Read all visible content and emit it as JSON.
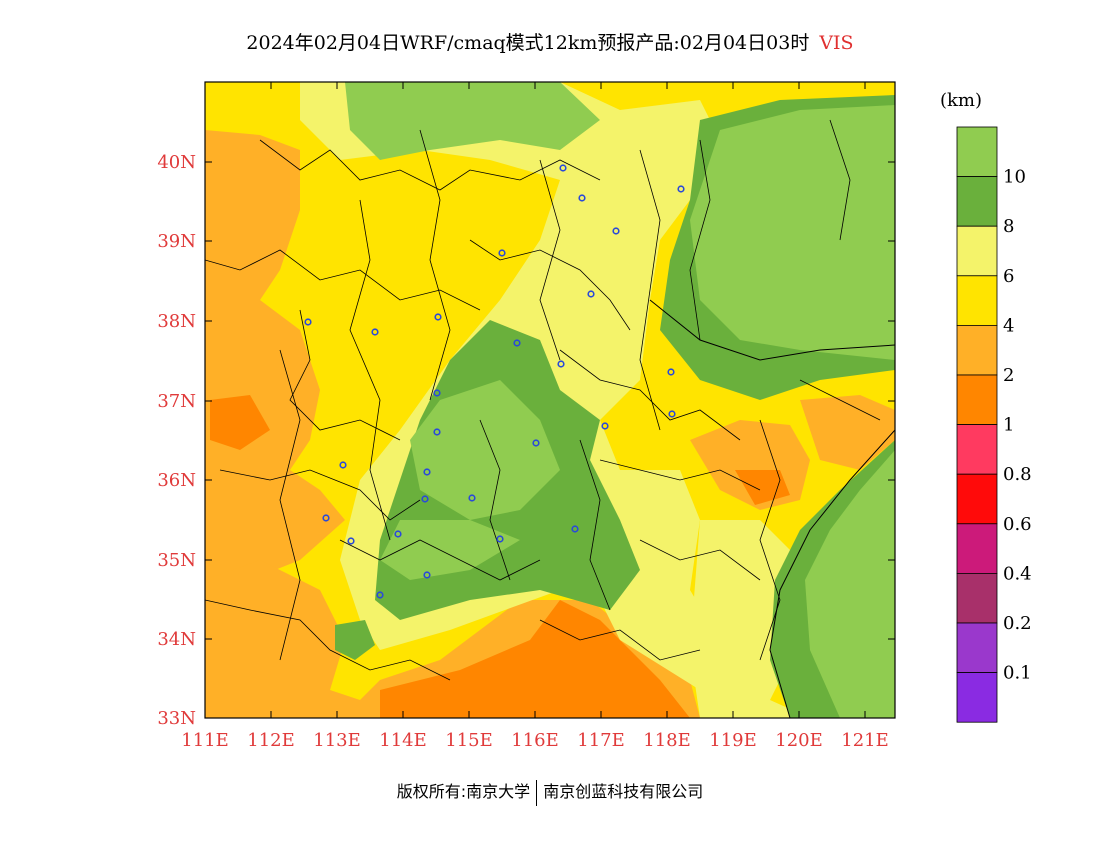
{
  "title": "2024年02月04日WRF/cmaq模式12km预报产品:02月04日03时",
  "variable": "VIS",
  "unit": "(km)",
  "footer": {
    "left": "版权所有:南京大学",
    "right": "南京创蓝科技有限公司"
  },
  "colors": {
    "tick": "#e03a3a",
    "city": "#2a4ad8"
  },
  "map": {
    "lon_ticks": [
      "111E",
      "112E",
      "113E",
      "114E",
      "115E",
      "116E",
      "117E",
      "118E",
      "119E",
      "120E",
      "121E"
    ],
    "lat_ticks": [
      "40N",
      "39N",
      "38N",
      "37N",
      "36N",
      "35N",
      "34N",
      "33N"
    ]
  },
  "colorbar": {
    "labels": [
      "10",
      "8",
      "6",
      "4",
      "2",
      "1",
      "0.8",
      "0.6",
      "0.4",
      "0.2",
      "0.1"
    ],
    "colors": [
      "#90cc50",
      "#6ab03c",
      "#f4f36a",
      "#ffe400",
      "#ffb027",
      "#ff8600",
      "#ff3a60",
      "#ff0a0a",
      "#cc1a7a",
      "#a8306a",
      "#9a38cc",
      "#8a2be2"
    ]
  }
}
